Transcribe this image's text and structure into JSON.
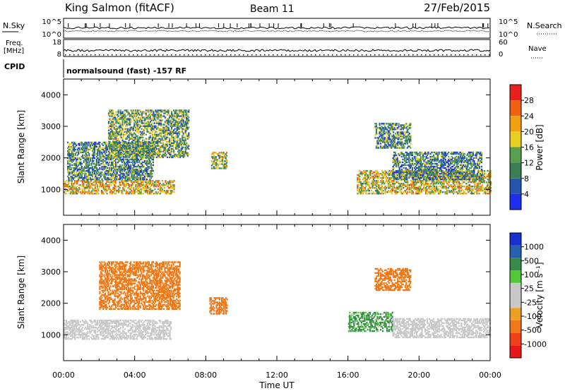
{
  "header": {
    "station": "King Salmon (fitACF)",
    "beam": "Beam 11",
    "date": "27/Feb/2015"
  },
  "params": {
    "nsky_label": "N.Sky",
    "nsky_ticks": [
      "10^5",
      "10^0"
    ],
    "nsearch_label": "N.Search",
    "nsearch_ticks": [
      "10^5",
      "10^0"
    ],
    "freq_label": "Freq.",
    "freq_unit": "[MHz]",
    "freq_ticks": [
      "18",
      "8"
    ],
    "nave_label": "Nave",
    "nave_ticks": [
      "60",
      "0"
    ],
    "cpid_label": "CPID",
    "cpid_value": "normalsound (fast) -157 RF"
  },
  "colors": {
    "power_scale": [
      "#1d2ef0",
      "#2456b0",
      "#3a7d55",
      "#5a9e50",
      "#e8d020",
      "#f0a010",
      "#f06010",
      "#e82020"
    ],
    "velocity_scale": [
      "#e81818",
      "#f04018",
      "#f07818",
      "#f0a020",
      "#c8c8c8",
      "#c8c8c8",
      "#50c838",
      "#3a8a4a",
      "#2860b0",
      "#1830d0"
    ]
  },
  "chart_data": [
    {
      "type": "heatmap",
      "name": "power",
      "ylabel": "Slant Range [km]",
      "xlabel": "Time UT",
      "x_ticks": [
        "00:00",
        "04:00",
        "08:00",
        "12:00",
        "16:00",
        "20:00",
        "00:00"
      ],
      "y_ticks": [
        "1000",
        "2000",
        "3000",
        "4000"
      ],
      "xlim_hours": [
        0,
        24
      ],
      "ylim_km": [
        180,
        4500
      ],
      "colorbar": {
        "label": "Power [dB]",
        "ticks": [
          "4",
          "8",
          "12",
          "16",
          "20",
          "24",
          "28"
        ],
        "range": [
          0,
          30
        ]
      },
      "regions": [
        {
          "t": [
            0.0,
            6.2
          ],
          "r": [
            850,
            1300
          ],
          "value": 18
        },
        {
          "t": [
            0.2,
            5.0
          ],
          "r": [
            1300,
            2500
          ],
          "value": 10
        },
        {
          "t": [
            2.5,
            7.0
          ],
          "r": [
            2000,
            3500
          ],
          "value": 12
        },
        {
          "t": [
            8.3,
            9.2
          ],
          "r": [
            1650,
            2150
          ],
          "value": 15
        },
        {
          "t": [
            17.5,
            19.5
          ],
          "r": [
            2300,
            3100
          ],
          "value": 10
        },
        {
          "t": [
            16.5,
            24.0
          ],
          "r": [
            850,
            1600
          ],
          "value": 17
        },
        {
          "t": [
            18.5,
            23.5
          ],
          "r": [
            1300,
            2200
          ],
          "value": 9
        }
      ]
    },
    {
      "type": "heatmap",
      "name": "velocity",
      "ylabel": "Slant Range [km]",
      "xlabel": "Time UT",
      "x_ticks": [
        "00:00",
        "04:00",
        "08:00",
        "12:00",
        "16:00",
        "20:00",
        "00:00"
      ],
      "y_ticks": [
        "1000",
        "2000",
        "3000",
        "4000"
      ],
      "xlim_hours": [
        0,
        24
      ],
      "ylim_km": [
        180,
        4500
      ],
      "colorbar": {
        "label": "Velocity [m s⁻¹]",
        "ticks": [
          "-1000",
          "-500",
          "-100",
          "-25",
          "25",
          "100",
          "500",
          "1000"
        ],
        "range": [
          -1200,
          1200
        ]
      },
      "regions": [
        {
          "t": [
            0.0,
            6.0
          ],
          "r": [
            850,
            1450
          ],
          "value": 0
        },
        {
          "t": [
            2.0,
            6.5
          ],
          "r": [
            1800,
            3300
          ],
          "value": -350
        },
        {
          "t": [
            8.2,
            9.2
          ],
          "r": [
            1650,
            2150
          ],
          "value": -350
        },
        {
          "t": [
            17.5,
            19.5
          ],
          "r": [
            2400,
            3100
          ],
          "value": -300
        },
        {
          "t": [
            16.0,
            18.5
          ],
          "r": [
            1100,
            1700
          ],
          "value": 150
        },
        {
          "t": [
            18.5,
            24.0
          ],
          "r": [
            900,
            1500
          ],
          "value": 0
        }
      ]
    }
  ]
}
